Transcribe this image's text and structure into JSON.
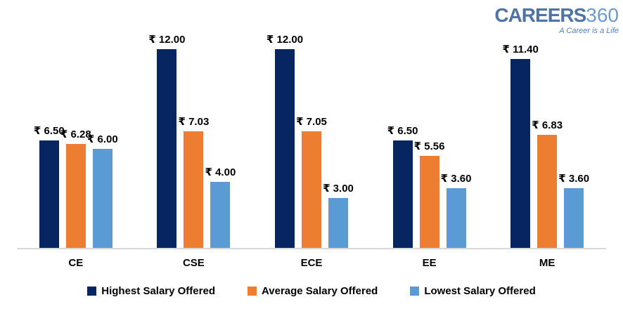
{
  "logo": {
    "brand": "CAREERS",
    "suffix": "360",
    "tagline": "A Career is a Life",
    "brand_color": "#4e73a4",
    "suffix_color": "#6d9bd1"
  },
  "chart_data": {
    "type": "bar",
    "title": "",
    "categories": [
      "CE",
      "CSE",
      "ECE",
      "EE",
      "ME"
    ],
    "series": [
      {
        "name": "Highest Salary Offered",
        "color": "#072561",
        "values": [
          6.5,
          12.0,
          12.0,
          6.5,
          11.4
        ]
      },
      {
        "name": "Average Salary Offered",
        "color": "#ed7d31",
        "values": [
          6.28,
          7.03,
          7.05,
          5.56,
          6.83
        ]
      },
      {
        "name": "Lowest Salary Offered",
        "color": "#5b9bd5",
        "values": [
          6.0,
          4.0,
          3.0,
          3.6,
          3.6
        ]
      }
    ],
    "value_prefix": "₹ ",
    "value_decimals": 2,
    "ylim": [
      0,
      12
    ],
    "grid": false,
    "legend_position": "bottom",
    "axis_line_color": "#d9d9d9"
  }
}
